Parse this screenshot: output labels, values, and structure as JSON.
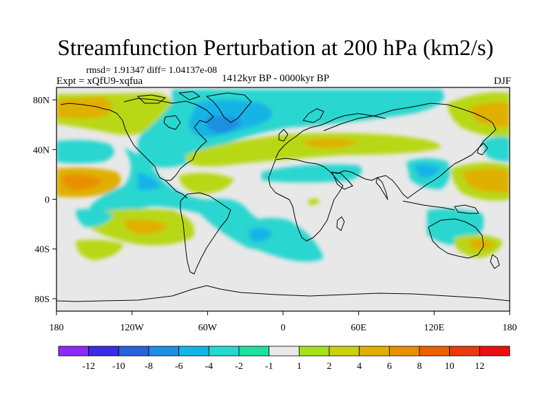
{
  "title": "Streamfunction Perturbation at 200 hPa (km2/s)",
  "stats": "rmsd= 1.91347 diff= 1.04137e-08",
  "experiment": "Expt = xQfU9-xqfua",
  "period": "1412kyr BP - 0000kyr BP",
  "season": "DJF",
  "map": {
    "lon_range": [
      -180,
      180
    ],
    "lat_range": [
      -90,
      90
    ],
    "x_ticks": [
      {
        "value": -180,
        "label": "180"
      },
      {
        "value": -120,
        "label": "120W"
      },
      {
        "value": -60,
        "label": "60W"
      },
      {
        "value": 0,
        "label": "0"
      },
      {
        "value": 60,
        "label": "60E"
      },
      {
        "value": 120,
        "label": "120E"
      },
      {
        "value": 180,
        "label": "180"
      }
    ],
    "y_ticks": [
      {
        "value": 80,
        "label": "80N"
      },
      {
        "value": 40,
        "label": "40N"
      },
      {
        "value": 0,
        "label": "0"
      },
      {
        "value": -40,
        "label": "40S"
      },
      {
        "value": -80,
        "label": "80S"
      }
    ]
  },
  "colorbar": {
    "labels": [
      "-12",
      "-10",
      "-8",
      "-6",
      "-4",
      "-2",
      "-1",
      "1",
      "2",
      "4",
      "6",
      "8",
      "10",
      "12"
    ],
    "colors": [
      "#8c2cf0",
      "#3a2ce0",
      "#2a62d8",
      "#1e8fe0",
      "#15b4e6",
      "#2ad6d0",
      "#22e09a",
      "#e8e8e8",
      "#a6e020",
      "#c8d010",
      "#e0b000",
      "#e89000",
      "#e86200",
      "#e83a10",
      "#e81010"
    ]
  }
}
